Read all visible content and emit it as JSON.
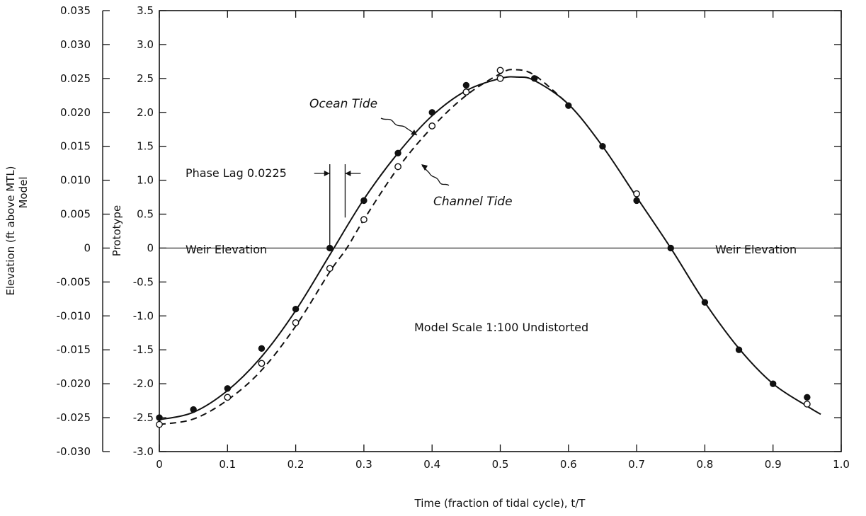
{
  "chart_data": {
    "type": "line",
    "xlabel": "Time (fraction of tidal cycle), t/T",
    "ylabel_left_title": "Elevation (ft above MTL)",
    "ylabel_left_sub": "Model",
    "ylabel_right": "Prototype",
    "xlim": [
      0,
      1.0
    ],
    "ylim": [
      -3.0,
      3.5
    ],
    "ylim_model": [
      -0.03,
      0.035
    ],
    "x_ticks": [
      "0",
      "0.1",
      "0.2",
      "0.3",
      "0.4",
      "0.5",
      "0.6",
      "0.7",
      "0.8",
      "0.9",
      "1.0"
    ],
    "y_ticks_prototype": [
      "3.5",
      "3.0",
      "2.5",
      "2.0",
      "1.5",
      "1.0",
      "0.5",
      "0",
      "-0.5",
      "-1.0",
      "-1.5",
      "-2.0",
      "-2.5",
      "-3.0"
    ],
    "y_ticks_model": [
      "0.035",
      "0.030",
      "0.025",
      "0.020",
      "0.015",
      "0.010",
      "0.005",
      "0",
      "-0.005",
      "-0.010",
      "-0.015",
      "-0.020",
      "-0.025",
      "-0.030"
    ],
    "grid": false,
    "series": [
      {
        "name": "Ocean Tide",
        "style": "solid",
        "marker": "filled",
        "points": [
          [
            0,
            -2.5
          ],
          [
            0.05,
            -2.38
          ],
          [
            0.1,
            -2.07
          ],
          [
            0.15,
            -1.48
          ],
          [
            0.2,
            -0.9
          ],
          [
            0.25,
            0.0
          ],
          [
            0.3,
            0.7
          ],
          [
            0.35,
            1.4
          ],
          [
            0.4,
            2.0
          ],
          [
            0.45,
            2.4
          ],
          [
            0.5,
            2.5
          ],
          [
            0.55,
            2.5
          ],
          [
            0.6,
            2.1
          ],
          [
            0.65,
            1.5
          ],
          [
            0.7,
            0.7
          ],
          [
            0.75,
            0.0
          ],
          [
            0.8,
            -0.8
          ],
          [
            0.85,
            -1.5
          ],
          [
            0.9,
            -2.0
          ],
          [
            0.95,
            -2.2
          ]
        ],
        "curve": [
          [
            0,
            -2.53
          ],
          [
            0.05,
            -2.42
          ],
          [
            0.1,
            -2.1
          ],
          [
            0.15,
            -1.6
          ],
          [
            0.2,
            -0.92
          ],
          [
            0.25,
            -0.1
          ],
          [
            0.3,
            0.72
          ],
          [
            0.35,
            1.4
          ],
          [
            0.4,
            1.95
          ],
          [
            0.45,
            2.32
          ],
          [
            0.5,
            2.5
          ],
          [
            0.525,
            2.52
          ],
          [
            0.55,
            2.47
          ],
          [
            0.6,
            2.12
          ],
          [
            0.65,
            1.5
          ],
          [
            0.7,
            0.75
          ],
          [
            0.75,
            0.0
          ],
          [
            0.8,
            -0.8
          ],
          [
            0.85,
            -1.48
          ],
          [
            0.9,
            -2.0
          ],
          [
            0.95,
            -2.33
          ],
          [
            0.97,
            -2.45
          ]
        ]
      },
      {
        "name": "Channel Tide",
        "style": "dashed",
        "marker": "open",
        "points": [
          [
            0,
            -2.6
          ],
          [
            0.1,
            -2.2
          ],
          [
            0.15,
            -1.7
          ],
          [
            0.2,
            -1.1
          ],
          [
            0.25,
            -0.3
          ],
          [
            0.3,
            0.42
          ],
          [
            0.35,
            1.2
          ],
          [
            0.4,
            1.8
          ],
          [
            0.45,
            2.3
          ],
          [
            0.5,
            2.62
          ],
          [
            0.5,
            2.5
          ],
          [
            0.7,
            0.8
          ],
          [
            0.95,
            -2.3
          ]
        ],
        "curve": [
          [
            0,
            -2.6
          ],
          [
            0.05,
            -2.52
          ],
          [
            0.1,
            -2.24
          ],
          [
            0.15,
            -1.8
          ],
          [
            0.2,
            -1.15
          ],
          [
            0.25,
            -0.35
          ],
          [
            0.275,
            0.0
          ],
          [
            0.3,
            0.42
          ],
          [
            0.35,
            1.18
          ],
          [
            0.4,
            1.78
          ],
          [
            0.45,
            2.25
          ],
          [
            0.5,
            2.57
          ],
          [
            0.52,
            2.63
          ],
          [
            0.55,
            2.55
          ],
          [
            0.6,
            2.12
          ]
        ]
      }
    ],
    "annotations": {
      "ocean_tide": "Ocean Tide",
      "channel_tide": "Channel Tide",
      "phase_lag": "Phase Lag 0.0225",
      "weir_left": "Weir Elevation",
      "weir_right": "Weir Elevation",
      "scale_note": "Model Scale 1:100 Undistorted"
    }
  }
}
